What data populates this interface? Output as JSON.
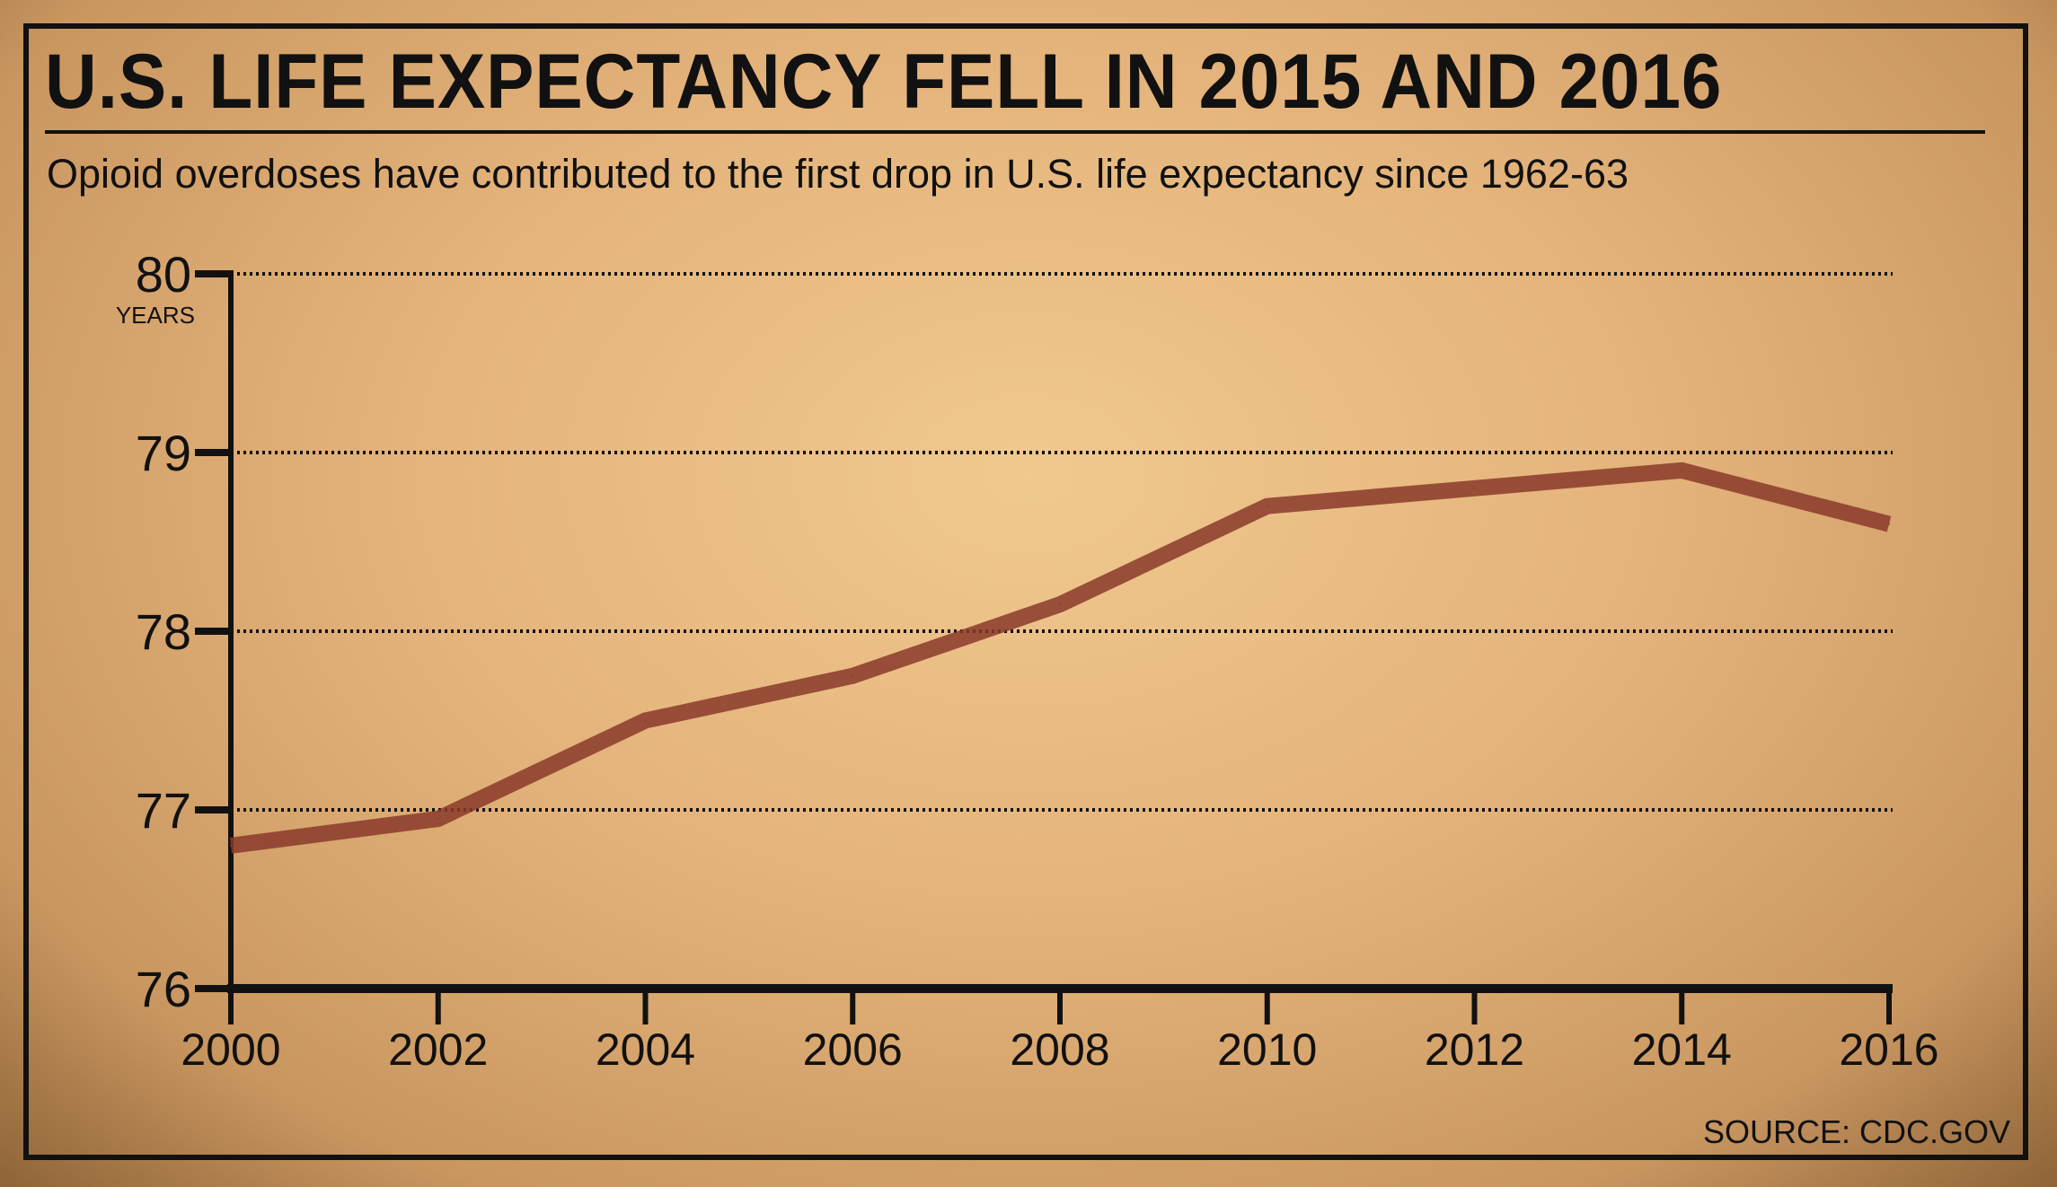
{
  "title": "U.S. LIFE EXPECTANCY FELL IN 2015 AND 2016",
  "subtitle": "Opioid overdoses have contributed to the first drop in U.S. life expectancy since 1962-63",
  "source": "SOURCE: CDC.GOV",
  "chart_data": {
    "type": "line",
    "title": "U.S. LIFE EXPECTANCY FELL IN 2015 AND 2016",
    "subtitle": "Opioid overdoses have contributed to the first drop in U.S. life expectancy since 1962-63",
    "xlabel": "",
    "ylabel": "YEARS",
    "xlim": [
      2000,
      2016
    ],
    "ylim": [
      76,
      80
    ],
    "x_ticks": [
      "2000",
      "2002",
      "2004",
      "2006",
      "2008",
      "2010",
      "2012",
      "2014",
      "2016"
    ],
    "y_ticks": [
      "76",
      "77",
      "78",
      "79",
      "80"
    ],
    "grid": "horizontal dotted",
    "line_color": "#8a3a2a",
    "series": [
      {
        "x": [
          2000,
          2002,
          2004,
          2006,
          2008,
          2010,
          2012,
          2014,
          2016
        ],
        "values": [
          76.8,
          76.95,
          77.5,
          77.75,
          78.15,
          78.7,
          78.8,
          78.9,
          78.6
        ]
      }
    ]
  }
}
